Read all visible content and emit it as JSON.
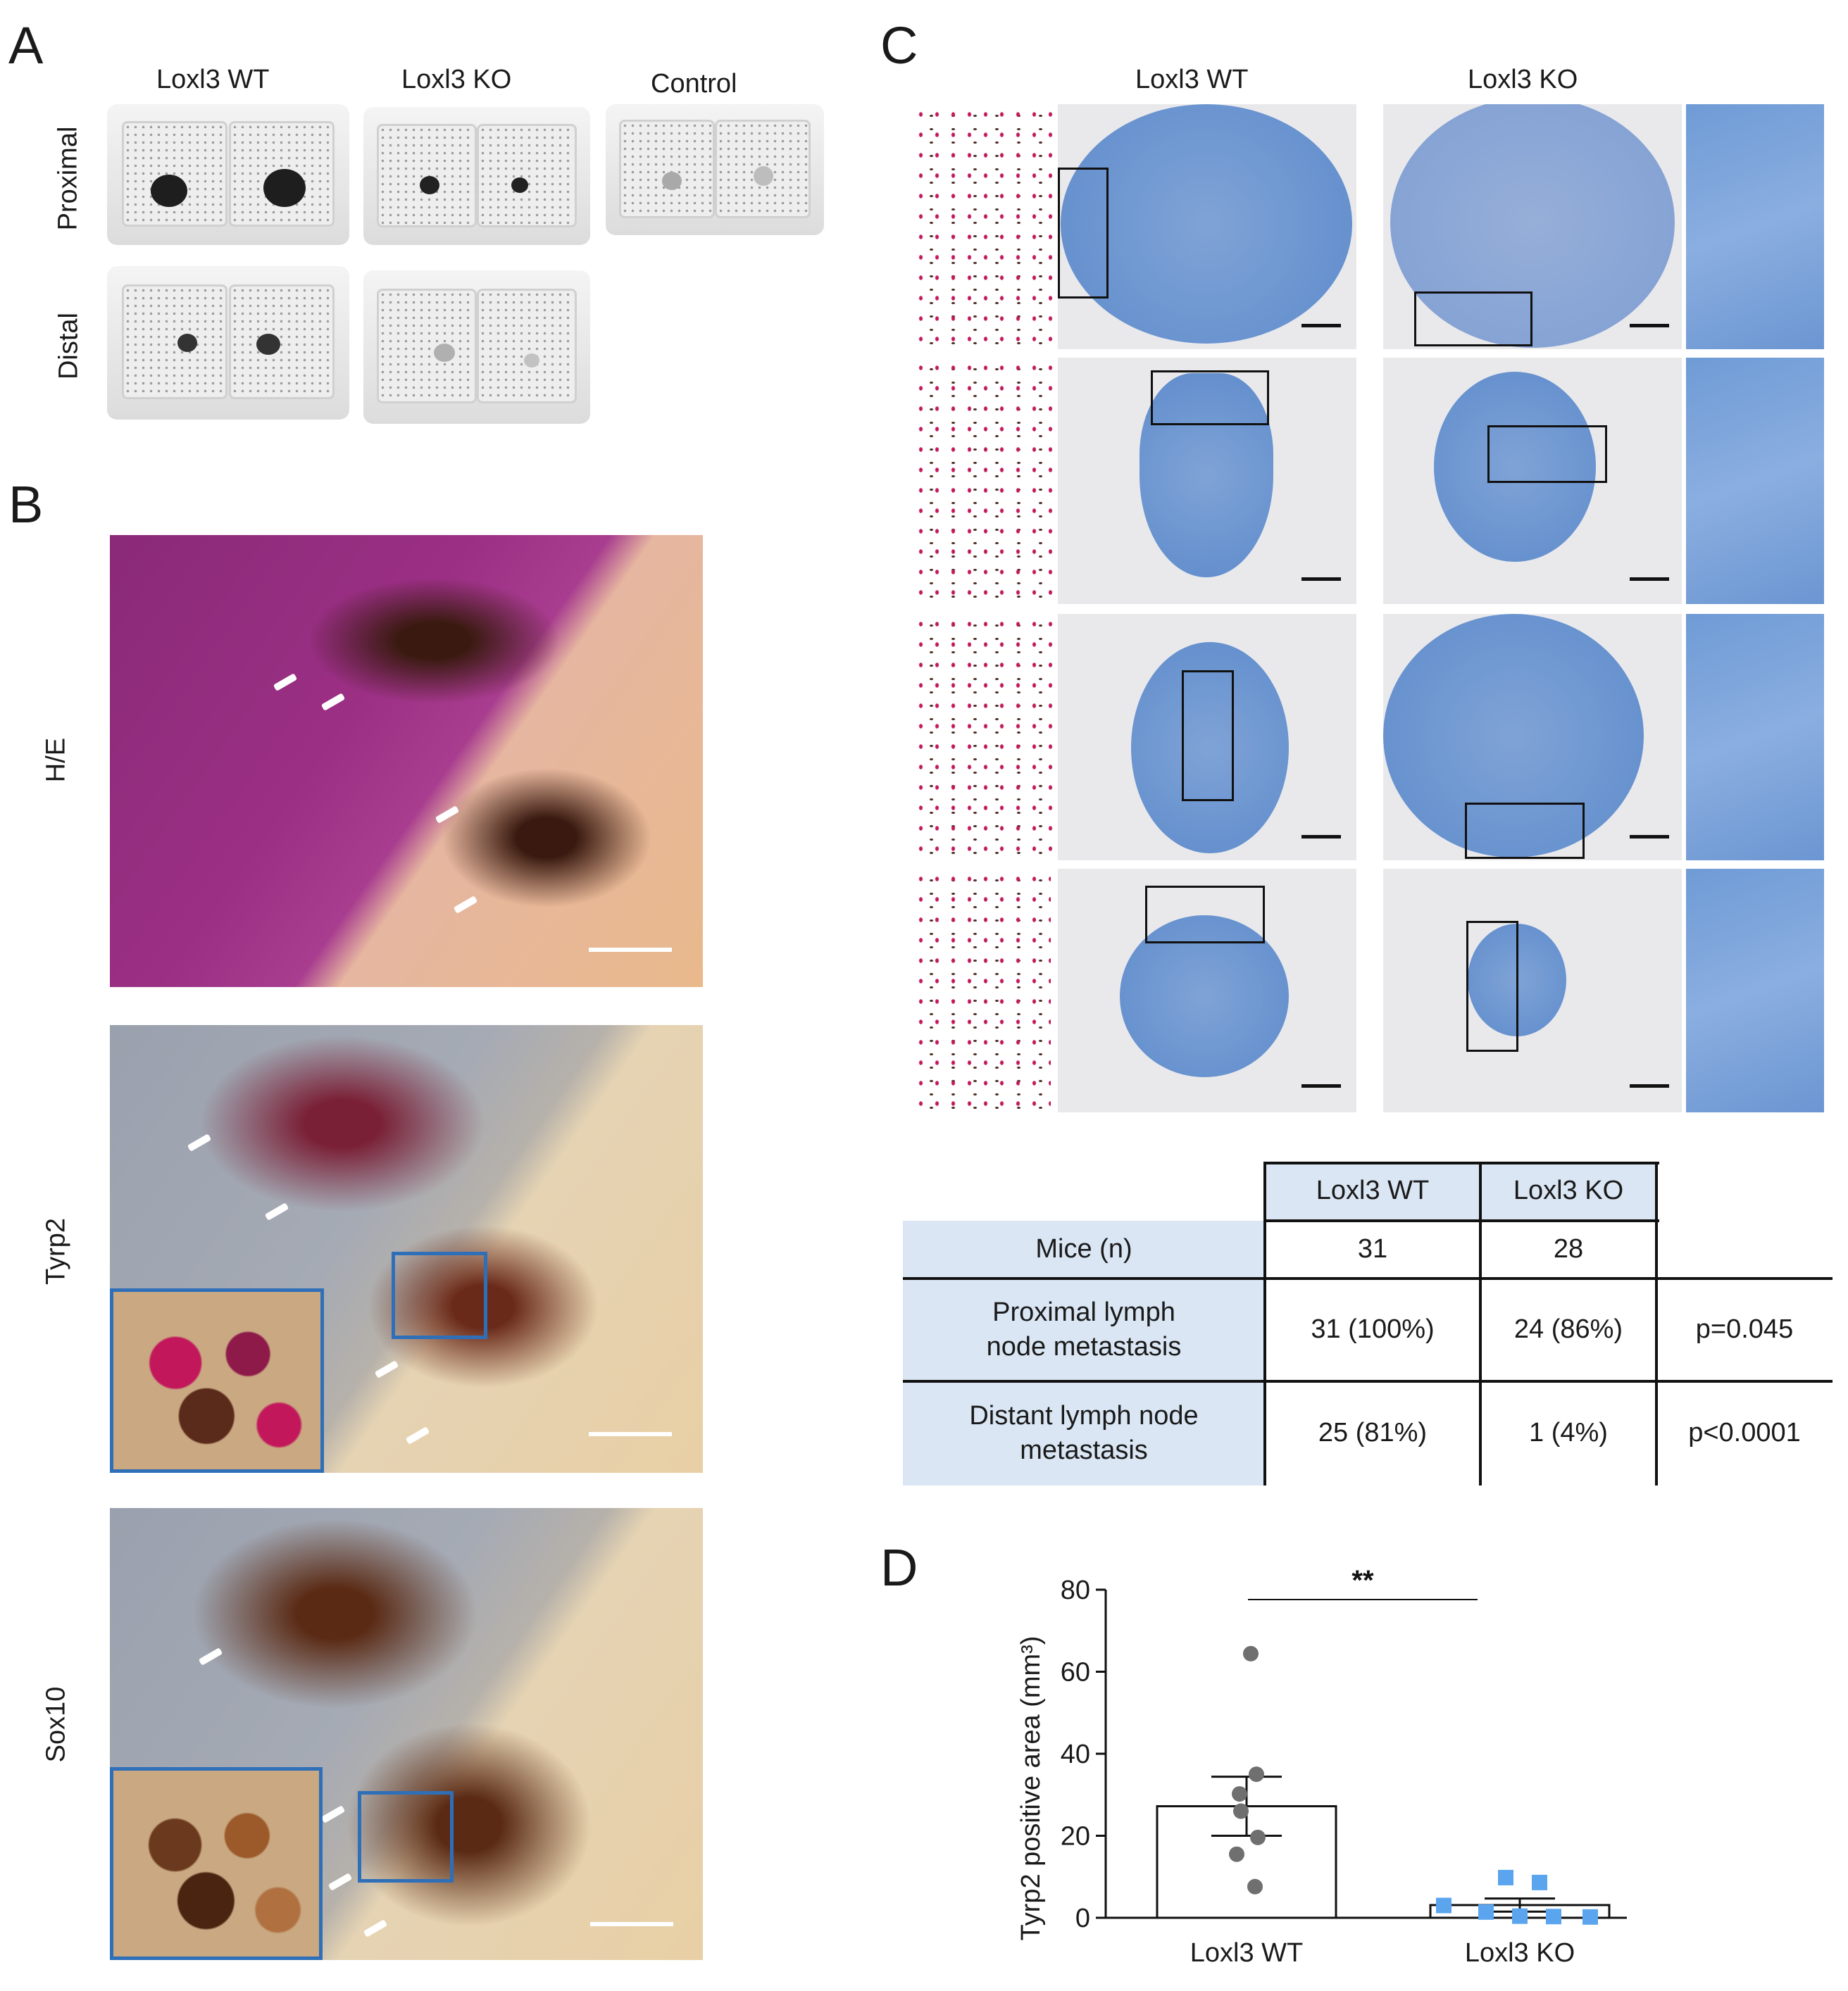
{
  "panels": {
    "a": {
      "letter": "A",
      "col_labels": [
        "Loxl3 WT",
        "Loxl3 KO",
        "Control"
      ],
      "row_labels": [
        "Proximal",
        "Distal"
      ]
    },
    "b": {
      "letter": "B",
      "row_labels": [
        "H/E",
        "Tyrp2",
        "Sox10"
      ]
    },
    "c": {
      "letter": "C",
      "col_labels": [
        "Loxl3 WT",
        "Loxl3 KO"
      ]
    },
    "d": {
      "letter": "D"
    }
  },
  "table": {
    "headers": [
      "Loxl3 WT",
      "Loxl3 KO"
    ],
    "rows": [
      {
        "label": "Mice (n)",
        "wt": "31",
        "ko": "28",
        "p": ""
      },
      {
        "label": "Proximal lymph node metastasis",
        "wt": "31 (100%)",
        "ko": "24 (86%)",
        "p": "p=0.045"
      },
      {
        "label": "Distant lymph node metastasis",
        "wt": "25 (81%)",
        "ko": "1 (4%)",
        "p": "p<0.0001"
      }
    ]
  },
  "chart_data": {
    "type": "bar",
    "categories": [
      "Loxl3 WT",
      "Loxl3 KO"
    ],
    "ylabel": "Tyrp2 positive area (mm³)",
    "ylim": [
      0,
      80
    ],
    "yticks": [
      0,
      20,
      40,
      60,
      80
    ],
    "significance": "**",
    "series": [
      {
        "values": [
          27.2,
          3.1
        ],
        "sem": [
          7.2,
          1.6
        ],
        "points": [
          [
            64.4,
            35.0,
            30.2,
            26.0,
            19.6,
            15.5,
            7.6
          ],
          [
            9.8,
            8.6,
            3.0,
            1.4,
            0.4,
            0.3,
            0.2
          ]
        ]
      }
    ],
    "colors": {
      "wt_points": "#6f6f6f",
      "ko_points": "#5aa5ee",
      "bar_edge": "#111111"
    }
  }
}
